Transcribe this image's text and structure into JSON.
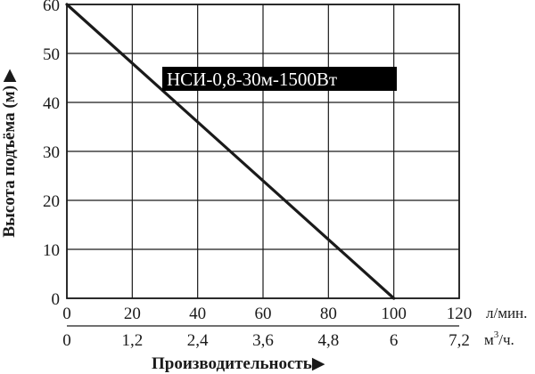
{
  "chart_data": {
    "type": "line",
    "series": [
      {
        "name": "НСИ-0,8-30м-1500Вт",
        "x": [
          0,
          100
        ],
        "y": [
          60,
          0
        ]
      }
    ],
    "x_axis_primary": {
      "ticks": [
        "0",
        "20",
        "40",
        "60",
        "80",
        "100",
        "120"
      ],
      "values": [
        0,
        20,
        40,
        60,
        80,
        100,
        120
      ],
      "unit": "л/мин."
    },
    "x_axis_secondary": {
      "ticks": [
        "0",
        "1,2",
        "2,4",
        "3,6",
        "4,8",
        "6",
        "7,2"
      ],
      "unit_base": "м",
      "unit_sup": "3",
      "unit_tail": "/ч."
    },
    "y_axis": {
      "ticks": [
        "0",
        "10",
        "20",
        "30",
        "40",
        "50",
        "60"
      ],
      "values": [
        0,
        10,
        20,
        30,
        40,
        50,
        60
      ]
    },
    "xlabel": "Производительность",
    "ylabel": "Высота подъёма (м)",
    "arrow_glyph": "▶",
    "xlim": [
      0,
      120
    ],
    "ylim": [
      0,
      60
    ],
    "grid": true,
    "colors": {
      "line": "#1a1a1a",
      "grid": "#1a1a1a",
      "label_bg": "#000000",
      "label_text": "#ffffff"
    }
  }
}
